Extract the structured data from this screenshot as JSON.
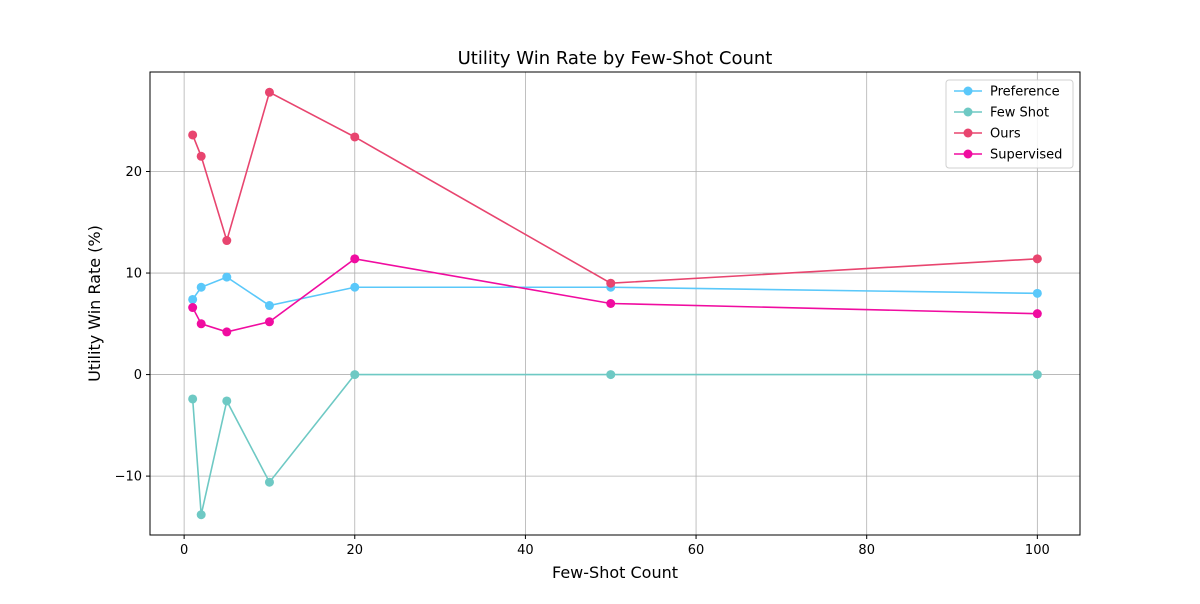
{
  "chart_data": {
    "type": "line",
    "title": "Utility Win Rate by Few-Shot Count",
    "xlabel": "Few-Shot Count",
    "ylabel": "Utility Win Rate (%)",
    "xlim": [
      -4,
      105
    ],
    "ylim": [
      -15.8,
      29.8
    ],
    "xticks": [
      0,
      20,
      40,
      60,
      80,
      100
    ],
    "yticks": [
      -10,
      0,
      10,
      20
    ],
    "grid": true,
    "legend_position": "top-right",
    "x": [
      1,
      2,
      5,
      10,
      20,
      50,
      100
    ],
    "series": [
      {
        "name": "Preference",
        "color": "#5ac8fa",
        "values": [
          7.4,
          8.6,
          9.6,
          6.8,
          8.6,
          8.6,
          8.0
        ]
      },
      {
        "name": "Few Shot",
        "color": "#6ec9c4",
        "values": [
          -2.4,
          -13.8,
          -2.6,
          -10.6,
          0.0,
          0.0,
          0.0
        ]
      },
      {
        "name": "Ours",
        "color": "#e8456f",
        "values": [
          23.6,
          21.5,
          13.2,
          27.8,
          23.4,
          9.0,
          11.4
        ]
      },
      {
        "name": "Supervised",
        "color": "#f00ca0",
        "values": [
          6.6,
          5.0,
          4.2,
          5.2,
          11.4,
          7.0,
          6.0
        ]
      }
    ]
  }
}
